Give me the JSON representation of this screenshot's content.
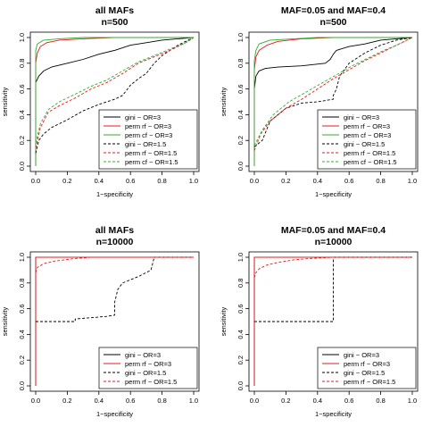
{
  "chart_data": [
    {
      "type": "line",
      "title": "all MAFs",
      "subtitle": "n=500",
      "xlabel": "1−specificity",
      "ylabel": "sensitivity",
      "xlim": [
        0,
        1
      ],
      "ylim": [
        0,
        1
      ],
      "xticks": [
        "0.0",
        "0.2",
        "0.4",
        "0.6",
        "0.8",
        "1.0"
      ],
      "yticks": [
        "0.0",
        "0.2",
        "0.4",
        "0.6",
        "0.8",
        "1.0"
      ],
      "legend_position": "bottom-right",
      "series": [
        {
          "name": "gini − OR=3",
          "color": "#000000",
          "dash": "solid",
          "points": [
            [
              0,
              0
            ],
            [
              0,
              0.65
            ],
            [
              0.02,
              0.7
            ],
            [
              0.05,
              0.74
            ],
            [
              0.1,
              0.77
            ],
            [
              0.2,
              0.8
            ],
            [
              0.3,
              0.83
            ],
            [
              0.4,
              0.87
            ],
            [
              0.5,
              0.9
            ],
            [
              0.6,
              0.94
            ],
            [
              0.7,
              0.96
            ],
            [
              0.8,
              0.98
            ],
            [
              0.9,
              0.99
            ],
            [
              1,
              1
            ]
          ]
        },
        {
          "name": "perm rf − OR=3",
          "color": "#e41a1c",
          "dash": "solid",
          "points": [
            [
              0,
              0
            ],
            [
              0,
              0.8
            ],
            [
              0.01,
              0.88
            ],
            [
              0.03,
              0.93
            ],
            [
              0.07,
              0.96
            ],
            [
              0.15,
              0.98
            ],
            [
              0.3,
              0.99
            ],
            [
              0.5,
              1
            ],
            [
              1,
              1
            ]
          ]
        },
        {
          "name": "perm cf − OR=3",
          "color": "#33aa33",
          "dash": "solid",
          "points": [
            [
              0,
              0
            ],
            [
              0,
              0.9
            ],
            [
              0.01,
              0.95
            ],
            [
              0.05,
              0.98
            ],
            [
              0.15,
              0.99
            ],
            [
              0.3,
              1
            ],
            [
              1,
              1
            ]
          ]
        },
        {
          "name": "gini − OR=1.5",
          "color": "#000000",
          "dash": "dashed",
          "points": [
            [
              0,
              0.1
            ],
            [
              0.02,
              0.2
            ],
            [
              0.05,
              0.25
            ],
            [
              0.1,
              0.3
            ],
            [
              0.2,
              0.36
            ],
            [
              0.3,
              0.43
            ],
            [
              0.4,
              0.48
            ],
            [
              0.5,
              0.52
            ],
            [
              0.55,
              0.55
            ],
            [
              0.6,
              0.63
            ],
            [
              0.65,
              0.68
            ],
            [
              0.7,
              0.72
            ],
            [
              0.75,
              0.8
            ],
            [
              0.8,
              0.86
            ],
            [
              0.9,
              0.94
            ],
            [
              1,
              1
            ]
          ]
        },
        {
          "name": "perm rf − OR=1.5",
          "color": "#e41a1c",
          "dash": "dashed",
          "points": [
            [
              0,
              0.14
            ],
            [
              0.03,
              0.3
            ],
            [
              0.08,
              0.42
            ],
            [
              0.15,
              0.47
            ],
            [
              0.25,
              0.53
            ],
            [
              0.35,
              0.6
            ],
            [
              0.45,
              0.65
            ],
            [
              0.55,
              0.72
            ],
            [
              0.65,
              0.8
            ],
            [
              0.75,
              0.85
            ],
            [
              0.85,
              0.9
            ],
            [
              0.95,
              0.96
            ],
            [
              1,
              1
            ]
          ]
        },
        {
          "name": "perm cf − OR=1.5",
          "color": "#33aa33",
          "dash": "dashed",
          "points": [
            [
              0,
              0.18
            ],
            [
              0.03,
              0.33
            ],
            [
              0.08,
              0.44
            ],
            [
              0.15,
              0.5
            ],
            [
              0.25,
              0.56
            ],
            [
              0.35,
              0.62
            ],
            [
              0.45,
              0.67
            ],
            [
              0.55,
              0.74
            ],
            [
              0.65,
              0.81
            ],
            [
              0.75,
              0.86
            ],
            [
              0.85,
              0.91
            ],
            [
              0.95,
              0.96
            ],
            [
              1,
              1
            ]
          ]
        }
      ]
    },
    {
      "type": "line",
      "title": "MAF=0.05 and MAF=0.4",
      "subtitle": "n=500",
      "xlabel": "1−specificity",
      "ylabel": "sensitivity",
      "xlim": [
        0,
        1
      ],
      "ylim": [
        0,
        1
      ],
      "xticks": [
        "0.0",
        "0.2",
        "0.4",
        "0.6",
        "0.8",
        "1.0"
      ],
      "yticks": [
        "0.0",
        "0.2",
        "0.4",
        "0.6",
        "0.8",
        "1.0"
      ],
      "legend_position": "bottom-right",
      "series": [
        {
          "name": "gini − OR=3",
          "color": "#000000",
          "dash": "solid",
          "points": [
            [
              0,
              0
            ],
            [
              0,
              0.6
            ],
            [
              0.01,
              0.7
            ],
            [
              0.03,
              0.74
            ],
            [
              0.07,
              0.76
            ],
            [
              0.15,
              0.77
            ],
            [
              0.3,
              0.78
            ],
            [
              0.45,
              0.8
            ],
            [
              0.48,
              0.83
            ],
            [
              0.5,
              0.87
            ],
            [
              0.52,
              0.9
            ],
            [
              0.6,
              0.93
            ],
            [
              0.7,
              0.95
            ],
            [
              0.8,
              0.98
            ],
            [
              0.9,
              0.99
            ],
            [
              1,
              1
            ]
          ]
        },
        {
          "name": "perm rf − OR=3",
          "color": "#e41a1c",
          "dash": "solid",
          "points": [
            [
              0,
              0
            ],
            [
              0,
              0.75
            ],
            [
              0.01,
              0.85
            ],
            [
              0.03,
              0.9
            ],
            [
              0.08,
              0.94
            ],
            [
              0.15,
              0.97
            ],
            [
              0.3,
              0.99
            ],
            [
              0.5,
              1
            ],
            [
              1,
              1
            ]
          ]
        },
        {
          "name": "perm cf − OR=3",
          "color": "#33aa33",
          "dash": "solid",
          "points": [
            [
              0,
              0
            ],
            [
              0,
              0.82
            ],
            [
              0.01,
              0.9
            ],
            [
              0.03,
              0.95
            ],
            [
              0.1,
              0.98
            ],
            [
              0.25,
              0.99
            ],
            [
              0.4,
              1
            ],
            [
              1,
              1
            ]
          ]
        },
        {
          "name": "gini − OR=1.5",
          "color": "#000000",
          "dash": "dashed",
          "points": [
            [
              0,
              0.15
            ],
            [
              0.05,
              0.2
            ],
            [
              0.1,
              0.35
            ],
            [
              0.2,
              0.45
            ],
            [
              0.25,
              0.47
            ],
            [
              0.3,
              0.49
            ],
            [
              0.4,
              0.5
            ],
            [
              0.5,
              0.52
            ],
            [
              0.5,
              0.55
            ],
            [
              0.52,
              0.6
            ],
            [
              0.54,
              0.7
            ],
            [
              0.6,
              0.8
            ],
            [
              0.7,
              0.88
            ],
            [
              0.8,
              0.94
            ],
            [
              0.9,
              0.98
            ],
            [
              1,
              1
            ]
          ]
        },
        {
          "name": "perm rf − OR=1.5",
          "color": "#e41a1c",
          "dash": "dashed",
          "points": [
            [
              0,
              0.12
            ],
            [
              0.04,
              0.25
            ],
            [
              0.1,
              0.35
            ],
            [
              0.2,
              0.45
            ],
            [
              0.3,
              0.52
            ],
            [
              0.4,
              0.6
            ],
            [
              0.5,
              0.68
            ],
            [
              0.6,
              0.75
            ],
            [
              0.7,
              0.82
            ],
            [
              0.8,
              0.88
            ],
            [
              0.9,
              0.94
            ],
            [
              1,
              1
            ]
          ]
        },
        {
          "name": "perm cf − OR=1.5",
          "color": "#33aa33",
          "dash": "dashed",
          "points": [
            [
              0,
              0.16
            ],
            [
              0.05,
              0.28
            ],
            [
              0.12,
              0.4
            ],
            [
              0.22,
              0.5
            ],
            [
              0.32,
              0.57
            ],
            [
              0.42,
              0.64
            ],
            [
              0.52,
              0.71
            ],
            [
              0.62,
              0.78
            ],
            [
              0.72,
              0.84
            ],
            [
              0.82,
              0.9
            ],
            [
              0.92,
              0.95
            ],
            [
              1,
              1
            ]
          ]
        }
      ]
    },
    {
      "type": "line",
      "title": "all MAFs",
      "subtitle": "n=10000",
      "xlabel": "1−specificity",
      "ylabel": "sensitivity",
      "xlim": [
        0,
        1
      ],
      "ylim": [
        0,
        1
      ],
      "xticks": [
        "0.0",
        "0.2",
        "0.4",
        "0.6",
        "0.8",
        "1.0"
      ],
      "yticks": [
        "0.0",
        "0.2",
        "0.4",
        "0.6",
        "0.8",
        "1.0"
      ],
      "legend_position": "bottom-right",
      "series": [
        {
          "name": "gini − OR=3",
          "color": "#000000",
          "dash": "solid",
          "points": [
            [
              0,
              0
            ],
            [
              0,
              1
            ],
            [
              1,
              1
            ]
          ]
        },
        {
          "name": "perm rf − OR=3",
          "color": "#e41a1c",
          "dash": "solid",
          "points": [
            [
              0,
              0
            ],
            [
              0,
              1
            ],
            [
              1,
              1
            ]
          ]
        },
        {
          "name": "gini − OR=1.5",
          "color": "#000000",
          "dash": "dashed",
          "points": [
            [
              0,
              0.5
            ],
            [
              0.25,
              0.5
            ],
            [
              0.25,
              0.52
            ],
            [
              0.35,
              0.53
            ],
            [
              0.45,
              0.54
            ],
            [
              0.5,
              0.55
            ],
            [
              0.5,
              0.65
            ],
            [
              0.52,
              0.75
            ],
            [
              0.55,
              0.8
            ],
            [
              0.65,
              0.85
            ],
            [
              0.73,
              0.9
            ],
            [
              0.74,
              0.95
            ],
            [
              0.75,
              1
            ],
            [
              1,
              1
            ]
          ]
        },
        {
          "name": "perm rf − OR=1.5",
          "color": "#e41a1c",
          "dash": "dashed",
          "points": [
            [
              0,
              0.88
            ],
            [
              0.01,
              0.92
            ],
            [
              0.05,
              0.95
            ],
            [
              0.12,
              0.97
            ],
            [
              0.25,
              0.99
            ],
            [
              0.35,
              1
            ],
            [
              1,
              1
            ]
          ]
        }
      ]
    },
    {
      "type": "line",
      "title": "MAF=0.05 and MAF=0.4",
      "subtitle": "n=10000",
      "xlabel": "1−specificity",
      "ylabel": "sensitivity",
      "xlim": [
        0,
        1
      ],
      "ylim": [
        0,
        1
      ],
      "xticks": [
        "0.0",
        "0.2",
        "0.4",
        "0.6",
        "0.8",
        "1.0"
      ],
      "yticks": [
        "0.0",
        "0.2",
        "0.4",
        "0.6",
        "0.8",
        "1.0"
      ],
      "legend_position": "bottom-right",
      "series": [
        {
          "name": "gini − OR=3",
          "color": "#000000",
          "dash": "solid",
          "points": [
            [
              0,
              0
            ],
            [
              0,
              1
            ],
            [
              1,
              1
            ]
          ]
        },
        {
          "name": "perm rf − OR=3",
          "color": "#e41a1c",
          "dash": "solid",
          "points": [
            [
              0,
              0
            ],
            [
              0,
              1
            ],
            [
              1,
              1
            ]
          ]
        },
        {
          "name": "gini − OR=1.5",
          "color": "#000000",
          "dash": "dashed",
          "points": [
            [
              0,
              0.5
            ],
            [
              0.5,
              0.5
            ],
            [
              0.5,
              1
            ],
            [
              1,
              1
            ]
          ]
        },
        {
          "name": "perm rf − OR=1.5",
          "color": "#e41a1c",
          "dash": "dashed",
          "points": [
            [
              0,
              0.84
            ],
            [
              0.01,
              0.88
            ],
            [
              0.03,
              0.91
            ],
            [
              0.08,
              0.94
            ],
            [
              0.15,
              0.96
            ],
            [
              0.25,
              0.98
            ],
            [
              0.35,
              0.99
            ],
            [
              0.5,
              1
            ],
            [
              1,
              1
            ]
          ]
        }
      ]
    }
  ]
}
